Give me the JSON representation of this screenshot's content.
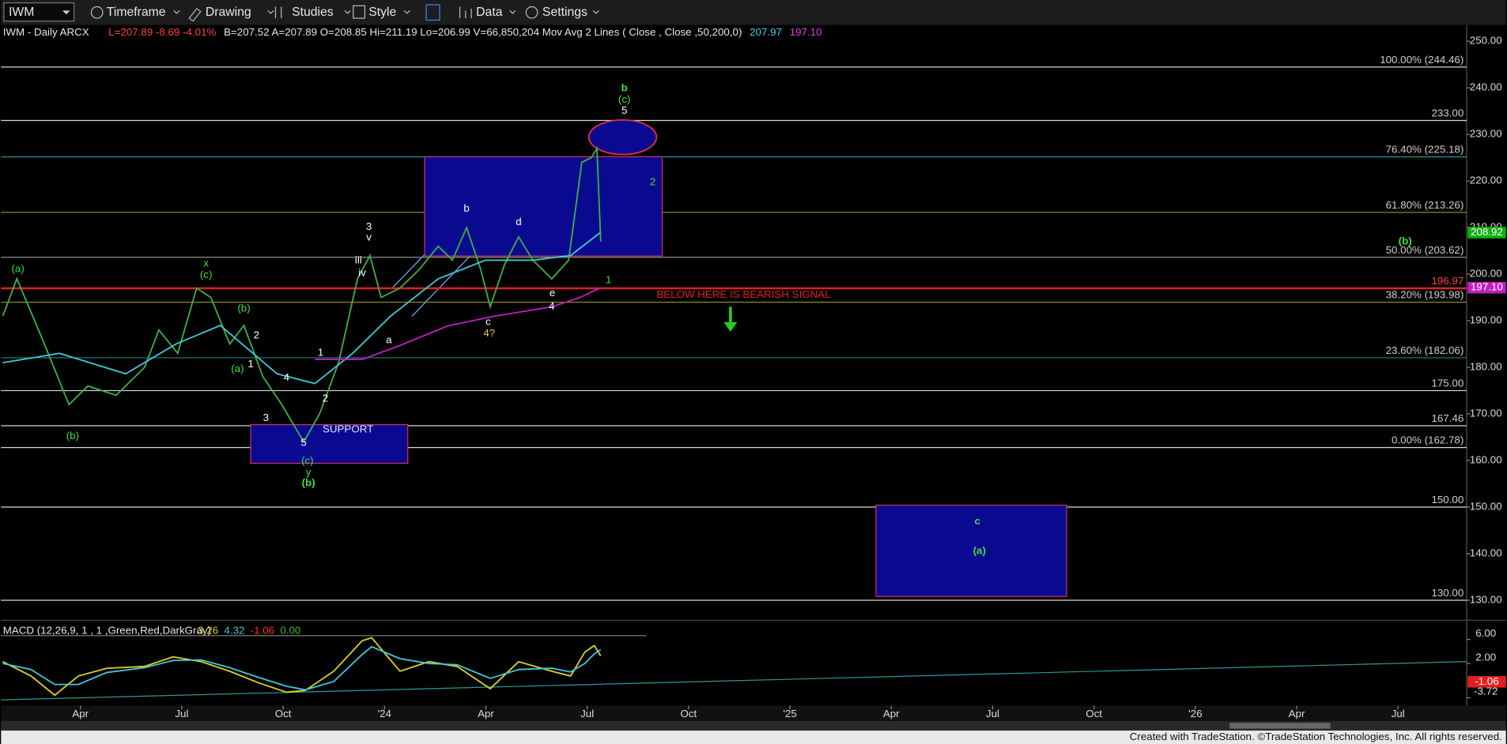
{
  "toolbar": {
    "symbol": "IWM",
    "items": [
      "Timeframe",
      "Drawing",
      "Studies",
      "Style",
      "Data",
      "Settings"
    ]
  },
  "footer": "Created with TradeStation. ©TradeStation Technologies, Inc. All rights reserved.",
  "chart_data": {
    "type": "line",
    "title": "IWM - Daily  ARCX",
    "header": [
      {
        "text": "L=207.89  -8.69  -4.01%",
        "color": "#ff4040"
      },
      {
        "text": "B=207.52  A=207.89  O=208.85  Hi=211.19  Lo=206.99  V=66,850,204  Mov Avg 2 Lines ( Close , Close ,50,200,0)",
        "color": "#e8e8e8"
      },
      {
        "text": "207.97",
        "color": "#40d0e0"
      },
      {
        "text": "197.10",
        "color": "#e040e0"
      }
    ],
    "xlim": [
      0.65,
      44.03
    ],
    "xticks": [
      {
        "value": 3,
        "label": "Apr"
      },
      {
        "value": 6,
        "label": "Jul"
      },
      {
        "value": 9,
        "label": "Oct"
      },
      {
        "value": 12,
        "label": "'24"
      },
      {
        "value": 15,
        "label": "Apr"
      },
      {
        "value": 18,
        "label": "Jul"
      },
      {
        "value": 21,
        "label": "Oct"
      },
      {
        "value": 24,
        "label": "'25"
      },
      {
        "value": 27,
        "label": "Apr"
      },
      {
        "value": 30,
        "label": "Jul"
      },
      {
        "value": 33,
        "label": "Oct"
      },
      {
        "value": 36,
        "label": "'26"
      },
      {
        "value": 39,
        "label": "Apr"
      },
      {
        "value": 42,
        "label": "Jul"
      }
    ],
    "ylim": [
      126.1,
      253.5
    ],
    "yticks": [
      {
        "value": 130,
        "label": "130.00"
      },
      {
        "value": 140,
        "label": "140.00"
      },
      {
        "value": 150,
        "label": "150.00"
      },
      {
        "value": 160,
        "label": "160.00"
      },
      {
        "value": 170,
        "label": "170.00"
      },
      {
        "value": 180,
        "label": "180.00"
      },
      {
        "value": 190,
        "label": "190.00"
      },
      {
        "value": 200,
        "label": "200.00"
      },
      {
        "value": 210,
        "label": "210.00"
      },
      {
        "value": 220,
        "label": "220.00"
      },
      {
        "value": 230,
        "label": "230.00"
      },
      {
        "value": 240,
        "label": "240.00"
      },
      {
        "value": 250,
        "label": "250.00"
      }
    ],
    "series": [
      {
        "color": "#3cb043",
        "x": [
          0.7,
          1.12,
          1.82,
          2.66,
          3.22,
          4.06,
          4.9,
          5.32,
          5.88,
          6.44,
          6.86,
          7.42,
          7.84,
          8.4,
          8.96,
          9.61,
          10.08,
          10.64,
          11.2,
          11.57,
          11.9,
          12.46,
          13.03,
          13.59,
          14.01,
          14.43,
          14.85,
          15.13,
          15.55,
          15.97,
          16.39,
          16.95,
          17.45,
          17.84,
          18.12,
          18.29,
          18.4
        ],
        "values": [
          191,
          199,
          187,
          172,
          176,
          174,
          180,
          188,
          183,
          197,
          195,
          185,
          189,
          178,
          172,
          164,
          170,
          181,
          199,
          204,
          195,
          197,
          201,
          206,
          203,
          210,
          201,
          193,
          202,
          208,
          203,
          199,
          203,
          224,
          225,
          227,
          207
        ]
      },
      {
        "color": "#40c8d8",
        "x": [
          0.7,
          2.38,
          4.34,
          5.83,
          7.14,
          8.82,
          9.94,
          11.06,
          12.18,
          13.59,
          14.99,
          16.39,
          17.51,
          18.4
        ],
        "values": [
          181,
          183,
          178.6,
          185,
          189,
          178.6,
          176.5,
          183,
          191,
          199,
          203,
          203,
          204,
          209
        ]
      },
      {
        "color": "#c020c0",
        "x": [
          9.94,
          11.34,
          12.46,
          13.87,
          15.27,
          16.95,
          17.79,
          18.4
        ],
        "values": [
          181.7,
          181.7,
          184.7,
          188.9,
          191,
          193,
          195,
          197.1
        ]
      }
    ],
    "levels": [
      {
        "value": 244.46,
        "label": "100.00% (244.46)",
        "color": "#d8d8d8"
      },
      {
        "value": 233.0,
        "label": "233.00",
        "color": "#d8d8d8"
      },
      {
        "value": 225.18,
        "label": "76.40% (225.18)",
        "color": "#2a9090"
      },
      {
        "value": 213.26,
        "label": "61.80% (213.26)",
        "color": "#8a8a30"
      },
      {
        "value": 203.62,
        "label": "50.00% (203.62)",
        "color": "#909090"
      },
      {
        "value": 196.97,
        "label": "196.97",
        "color": "#e02020"
      },
      {
        "value": 193.98,
        "label": "38.20% (193.98)",
        "color": "#8a8a30"
      },
      {
        "value": 182.06,
        "label": "23.60% (182.06)",
        "color": "#208080"
      },
      {
        "value": 175.0,
        "label": "175.00",
        "color": "#d8d8d8"
      },
      {
        "value": 167.46,
        "label": "167.46",
        "color": "#d8d8d8"
      },
      {
        "value": 162.78,
        "label": "0.00% (162.78)",
        "color": "#d8d8d8"
      },
      {
        "value": 150.0,
        "label": "150.00",
        "color": "#d8d8d8"
      },
      {
        "value": 130.0,
        "label": "130.00",
        "color": "#d8d8d8"
      }
    ],
    "boxes": [
      {
        "x": [
          13.19,
          20.22
        ],
        "y": [
          203.9,
          225.2
        ]
      },
      {
        "x": [
          8.04,
          12.69
        ],
        "y": [
          159.4,
          167.7
        ]
      },
      {
        "x": [
          26.55,
          32.19
        ],
        "y": [
          130.8,
          150.4
        ]
      }
    ],
    "ellipse": {
      "x": 19.05,
      "y": 229.4,
      "rx": 1.0,
      "ry": 3.7
    },
    "price_markers": [
      {
        "value": 208.92,
        "label": "208.92",
        "color": "#10b010"
      },
      {
        "value": 197.1,
        "label": "197.10",
        "color": "#c020c0"
      }
    ],
    "annotations": [
      {
        "text": "(a)",
        "x": 1.15,
        "y": 201.0,
        "color": "#40e040"
      },
      {
        "text": "(b)",
        "x": 2.77,
        "y": 165.2,
        "color": "#40e040"
      },
      {
        "text": "x",
        "x": 6.72,
        "y": 202.2,
        "color": "#40e040"
      },
      {
        "text": "(c)",
        "x": 6.72,
        "y": 199.8,
        "color": "#40e040"
      },
      {
        "text": "(b)",
        "x": 7.84,
        "y": 192.6,
        "color": "#40e040"
      },
      {
        "text": "2",
        "x": 8.21,
        "y": 186.8,
        "color": "#ffffff"
      },
      {
        "text": "(a)",
        "x": 7.65,
        "y": 179.6,
        "color": "#40e040"
      },
      {
        "text": "1",
        "x": 8.04,
        "y": 180.6,
        "color": "#ffffff"
      },
      {
        "text": "4",
        "x": 9.1,
        "y": 177.7,
        "color": "#ffffff"
      },
      {
        "text": "3",
        "x": 8.49,
        "y": 169.1,
        "color": "#ffffff"
      },
      {
        "text": "5",
        "x": 9.61,
        "y": 163.7,
        "color": "#ffffff"
      },
      {
        "text": "(c)",
        "x": 9.72,
        "y": 159.8,
        "color": "#40e040"
      },
      {
        "text": "y",
        "x": 9.75,
        "y": 157.4,
        "color": "#40e040"
      },
      {
        "text": "SUPPORT",
        "x": 10.92,
        "y": 166.6,
        "color": "#e0e0ff"
      },
      {
        "text": "1",
        "x": 10.11,
        "y": 183.1,
        "color": "#ffffff"
      },
      {
        "text": "2",
        "x": 10.25,
        "y": 173.2,
        "color": "#ffffff"
      },
      {
        "text": "3",
        "x": 11.54,
        "y": 210.1,
        "color": "#ffffff"
      },
      {
        "text": "v",
        "x": 11.54,
        "y": 207.8,
        "color": "#ffffff"
      },
      {
        "text": "iii",
        "x": 11.23,
        "y": 202.9,
        "color": "#ffffff"
      },
      {
        "text": "iv",
        "x": 11.34,
        "y": 200.2,
        "color": "#ffffff"
      },
      {
        "text": "a",
        "x": 12.13,
        "y": 185.8,
        "color": "#ffffff"
      },
      {
        "text": "b",
        "x": 14.43,
        "y": 214.0,
        "color": "#ffffff"
      },
      {
        "text": "c",
        "x": 15.07,
        "y": 189.7,
        "color": "#ffffff"
      },
      {
        "text": "4?",
        "x": 15.1,
        "y": 187.2,
        "color": "#e0d020"
      },
      {
        "text": "d",
        "x": 15.97,
        "y": 211.1,
        "color": "#ffffff"
      },
      {
        "text": "e",
        "x": 16.97,
        "y": 195.9,
        "color": "#ffffff"
      },
      {
        "text": "4",
        "x": 16.95,
        "y": 193.0,
        "color": "#ffffff"
      },
      {
        "text": "1",
        "x": 18.63,
        "y": 198.7,
        "color": "#40e040"
      },
      {
        "text": "(c)",
        "x": 19.1,
        "y": 237.4,
        "color": "#40e040"
      },
      {
        "text": "5",
        "x": 19.1,
        "y": 235.0,
        "color": "#ffffff"
      },
      {
        "text": "2",
        "x": 19.94,
        "y": 219.7,
        "color": "#40e040"
      },
      {
        "text": "BELOW HERE IS BEARISH SIGNAL",
        "x": 22.63,
        "y": 195.5,
        "color": "#e02020"
      }
    ],
    "major_labels": [
      {
        "text": "(b)",
        "x": 9.75,
        "y": 155.1,
        "color": "#40e040"
      },
      {
        "text": "b",
        "x": 19.1,
        "y": 239.9,
        "color": "#40e040"
      },
      {
        "text": "(b)",
        "x": 42.21,
        "y": 207.0,
        "color": "#40e040"
      },
      {
        "text": "c",
        "x": 29.55,
        "y": 146.9,
        "color": "#40e040"
      },
      {
        "text": "(a)",
        "x": 29.61,
        "y": 140.5,
        "color": "#40e040"
      }
    ],
    "macd": {
      "type": "line",
      "title": "MACD (12,26,9, 1 , 1 ,Green,Red,DarkGray)",
      "readouts": [
        {
          "text": "3.26",
          "color": "#e0d020"
        },
        {
          "text": "4.32",
          "color": "#40c8d8"
        },
        {
          "text": "-1.06",
          "color": "#ff3030"
        },
        {
          "text": "0.00",
          "color": "#30c030"
        }
      ],
      "ylim": [
        -4.56,
        8.72
      ],
      "yticks": [
        {
          "value": 6,
          "label": "6.00"
        },
        {
          "value": 2,
          "label": "2.00"
        },
        {
          "value": -3.72,
          "label": "-3.72"
        }
      ],
      "series": [
        {
          "color": "#e0d020",
          "x": [
            0.7,
            1.54,
            2.24,
            2.94,
            3.78,
            4.9,
            5.74,
            6.58,
            7.42,
            8.26,
            9.1,
            9.66,
            10.5,
            11.34,
            11.62,
            12.46,
            13.31,
            14.15,
            15.13,
            15.97,
            16.95,
            17.51,
            17.93,
            18.21,
            18.4
          ],
          "values": [
            2.3,
            -0.1,
            -3.3,
            -0.1,
            1.2,
            1.5,
            3.1,
            2.3,
            0.7,
            -1.2,
            -2.8,
            -2.5,
            0.7,
            5.8,
            6.3,
            0.7,
            2.3,
            1.5,
            -2.2,
            2.3,
            0.7,
            -0.1,
            3.9,
            5.0,
            3.26
          ]
        },
        {
          "color": "#40c8d8",
          "x": [
            0.7,
            1.54,
            2.24,
            2.94,
            3.78,
            4.9,
            5.74,
            6.58,
            7.42,
            8.26,
            9.1,
            9.66,
            10.5,
            11.34,
            11.62,
            12.46,
            13.31,
            14.15,
            15.13,
            15.97,
            16.95,
            17.51,
            17.93,
            18.21,
            18.4
          ],
          "values": [
            2.0,
            1.0,
            -1.5,
            -1.5,
            0.5,
            1.3,
            2.5,
            2.6,
            1.3,
            -0.3,
            -1.8,
            -2.4,
            -1.0,
            3.5,
            4.8,
            2.8,
            2.0,
            1.8,
            -0.5,
            1.0,
            1.2,
            0.6,
            2.0,
            3.6,
            4.32
          ]
        }
      ],
      "markers": [
        {
          "value": -1.06,
          "label": "-1.06",
          "color": "#e02020"
        }
      ]
    }
  }
}
